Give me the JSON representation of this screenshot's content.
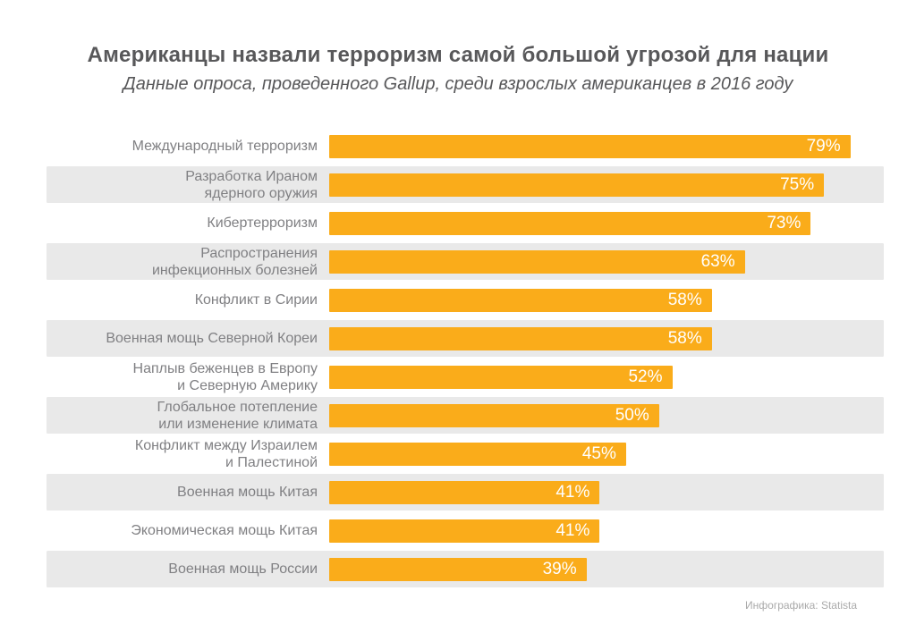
{
  "header": {
    "title": "Американцы назвали терроризм самой большой угрозой для нации",
    "subtitle": "Данные опроса, проведенного Gallup, среди взрослых американцев в 2016 году"
  },
  "footer": {
    "credit": "Инфографика: Statista"
  },
  "colors": {
    "bar": "#FAAC1A",
    "stripe": "#E9E9E9",
    "label_text": "#808083",
    "title_text": "#58585A",
    "value_text": "#FFFFFF",
    "credit_text": "#AAAAAA",
    "background": "#FFFFFF"
  },
  "chart_data": {
    "type": "bar",
    "orientation": "horizontal",
    "title": "Американцы назвали терроризм самой большой угрозой для нации",
    "subtitle": "Данные опроса, проведенного Gallup, среди взрослых американцев в 2016 году",
    "unit": "%",
    "xlabel": "",
    "ylabel": "",
    "xlim": [
      0,
      80
    ],
    "grid": false,
    "legend": false,
    "value_labels_position": "inside-end",
    "striped_rows": "even rows shaded",
    "categories": [
      "Международный терроризм",
      "Разработка Ираном\nядерного оружия",
      "Кибертерроризм",
      "Распространения\nинфекционных болезней",
      "Конфликт в Сирии",
      "Военная мощь Северной Кореи",
      "Наплыв беженцев в Европу\nи Северную Америку",
      "Глобальное потепление\nили изменение климата",
      "Конфликт между Израилем\nи Палестиной",
      "Военная мощь Китая",
      "Экономическая мощь Китая",
      "Военная мощь России"
    ],
    "values": [
      79,
      75,
      73,
      63,
      58,
      58,
      52,
      50,
      45,
      41,
      41,
      39
    ],
    "value_labels": [
      "79%",
      "75%",
      "73%",
      "63%",
      "58%",
      "58%",
      "52%",
      "50%",
      "45%",
      "41%",
      "41%",
      "39%"
    ]
  }
}
